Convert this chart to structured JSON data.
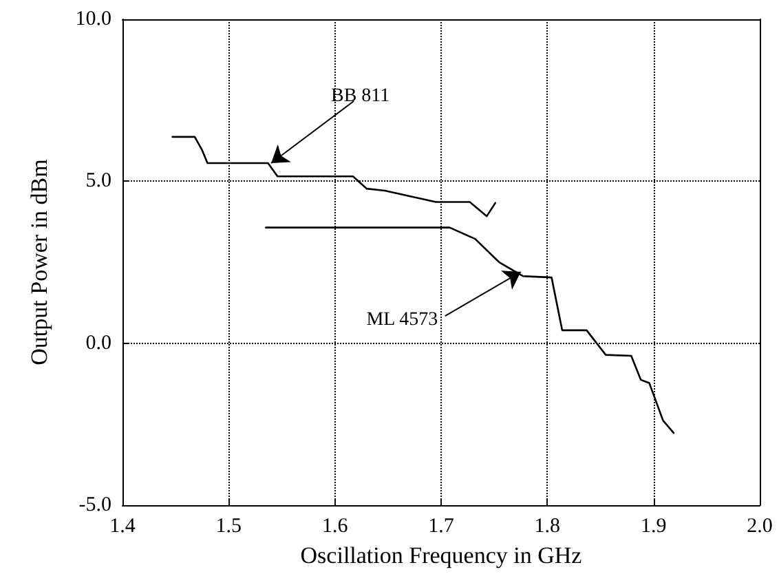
{
  "chart_data": {
    "type": "line",
    "xlabel": "Oscillation Frequency in GHz",
    "ylabel": "Output Power in dBm",
    "xlim": [
      1.4,
      2.0
    ],
    "xticks": [
      1.4,
      1.5,
      1.6,
      1.7,
      1.8,
      1.9,
      {
        "value": 2,
        "label": "2.0"
      }
    ],
    "ylim": [
      -5,
      10
    ],
    "yticks": [
      {
        "value": -5,
        "label": "-5.0"
      },
      {
        "value": 0,
        "label": "0.0"
      },
      {
        "value": 5,
        "label": "5.0"
      },
      {
        "value": 10,
        "label": "10.0"
      }
    ],
    "grid": true,
    "marker": "none",
    "line_style": "solid",
    "series": [
      {
        "color": "#000000",
        "x": [
          1.447,
          1.468,
          1.475,
          1.48,
          1.537,
          1.546,
          1.617,
          1.63,
          1.647,
          1.695,
          1.727,
          1.743,
          1.751
        ],
        "values": [
          6.37,
          6.37,
          5.96,
          5.56,
          5.56,
          5.15,
          5.15,
          4.77,
          4.71,
          4.36,
          4.36,
          3.92,
          4.33
        ]
      },
      {
        "color": "#000000",
        "x": [
          1.535,
          1.708,
          1.732,
          1.755,
          1.777,
          1.804,
          1.814,
          1.837,
          1.855,
          1.879,
          1.888,
          1.896,
          1.909,
          1.919
        ],
        "values": [
          3.57,
          3.57,
          3.22,
          2.49,
          2.07,
          2.03,
          0.4,
          0.4,
          -0.36,
          -0.39,
          -1.13,
          -1.23,
          -2.39,
          -2.77
        ]
      }
    ],
    "annotations": [
      {
        "text": "BB 811",
        "x": 1.54,
        "y": 5.56
      },
      {
        "text": "ML 4573",
        "x": 1.775,
        "y": 2.2
      }
    ]
  }
}
